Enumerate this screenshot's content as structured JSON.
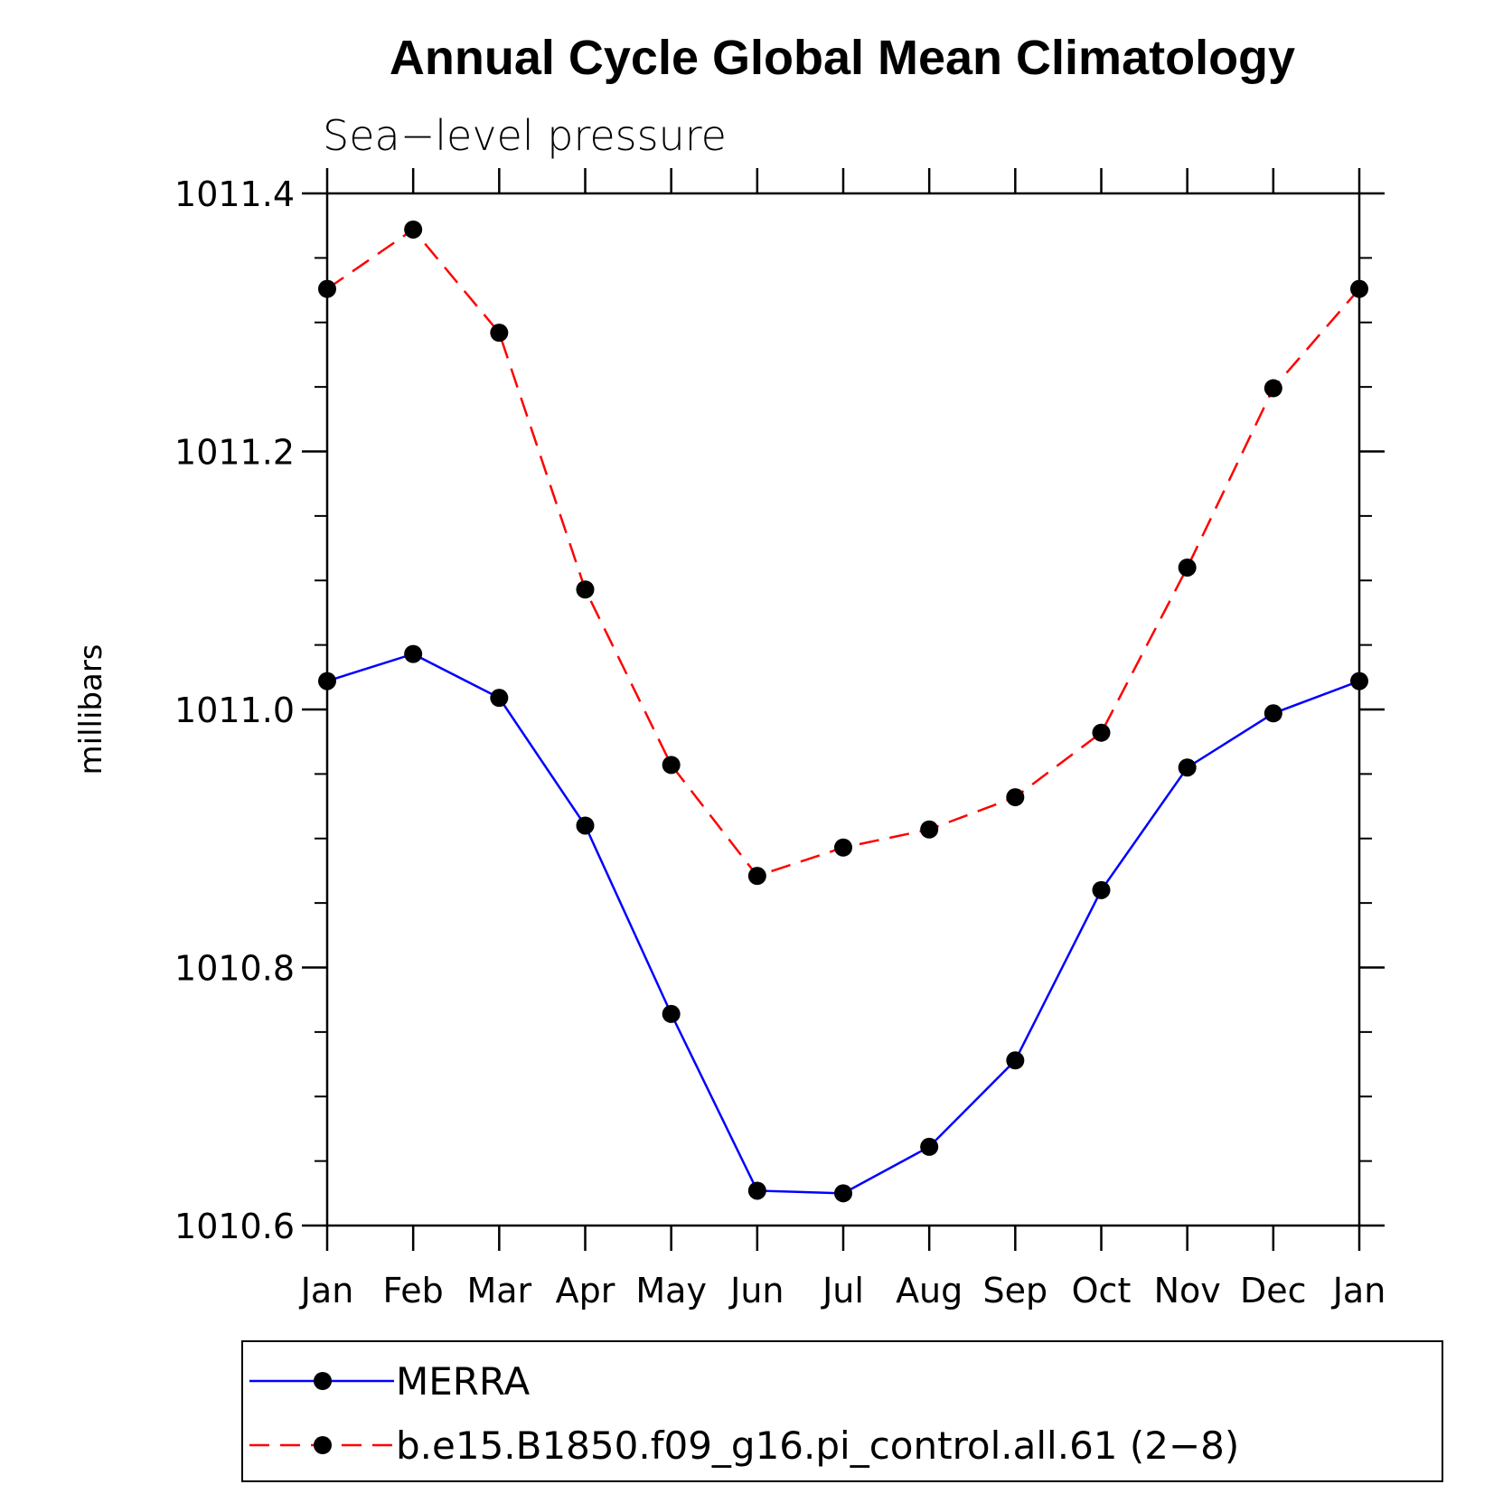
{
  "chart_data": {
    "type": "line",
    "title": "Annual Cycle Global Mean Climatology",
    "subtitle": "Sea−level pressure",
    "xlabel": "",
    "ylabel": "millibars",
    "categories": [
      "Jan",
      "Feb",
      "Mar",
      "Apr",
      "May",
      "Jun",
      "Jul",
      "Aug",
      "Sep",
      "Oct",
      "Nov",
      "Dec",
      "Jan"
    ],
    "ylim": [
      1010.6,
      1011.4
    ],
    "yticks": [
      1010.6,
      1010.8,
      1011.0,
      1011.2,
      1011.4
    ],
    "ytick_labels": [
      "1010.6",
      "1010.8",
      "1011.0",
      "1011.2",
      "1011.4"
    ],
    "grid": false,
    "legend_position": "bottom",
    "series": [
      {
        "name": "MERRA",
        "color": "#0000ff",
        "dash": "solid",
        "marker": "circle",
        "values": [
          1011.022,
          1011.043,
          1011.009,
          1010.91,
          1010.764,
          1010.627,
          1010.625,
          1010.661,
          1010.728,
          1010.86,
          1010.955,
          1010.997,
          1011.022
        ]
      },
      {
        "name": "b.e15.B1850.f09_g16.pi_control.all.61 (2−8)",
        "color": "#ff0000",
        "dash": "dashed",
        "marker": "circle",
        "values": [
          1011.326,
          1011.372,
          1011.292,
          1011.093,
          1010.957,
          1010.871,
          1010.893,
          1010.907,
          1010.932,
          1010.982,
          1011.11,
          1011.249,
          1011.326
        ]
      }
    ]
  }
}
